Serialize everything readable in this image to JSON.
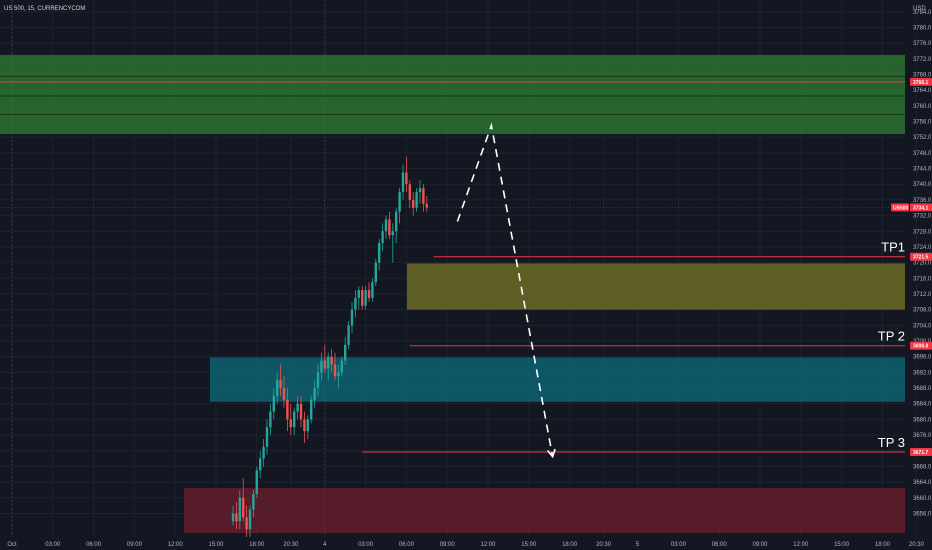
{
  "header": {
    "symbol": "US 500, 15, CURRENCYCOM"
  },
  "chart_data": {
    "type": "candlestick",
    "currency": "USD",
    "ylim": [
      3650,
      3787
    ],
    "y_ticks": [
      3656.0,
      3660.0,
      3664.0,
      3668.0,
      3672.0,
      3676.0,
      3680.0,
      3684.0,
      3688.0,
      3692.0,
      3696.0,
      3700.0,
      3704.0,
      3708.0,
      3712.0,
      3716.0,
      3720.0,
      3724.0,
      3728.0,
      3732.0,
      3736.0,
      3740.0,
      3744.0,
      3748.0,
      3752.0,
      3756.0,
      3760.0,
      3764.0,
      3768.0,
      3772.0,
      3776.0,
      3780.0,
      3784.0
    ],
    "y_tick_labels": [
      "3656.0",
      "3660.0",
      "3664.0",
      "3668.0",
      "3672.0",
      "3676.0",
      "3680.0",
      "3684.0",
      "3688.0",
      "3692.0",
      "3696.0",
      "3700.0",
      "3704.0",
      "3708.0",
      "3712.0",
      "3716.0",
      "3720.0",
      "3724.0",
      "3728.0",
      "3732.0",
      "3736.0",
      "3740.0",
      "3744.0",
      "3748.0",
      "3752.0",
      "3756.0",
      "3760.0",
      "3764.0",
      "3768.0",
      "3772.0",
      "3776.0",
      "3780.0",
      "3784.0"
    ],
    "x_ticks": [
      "Oct",
      "03:00",
      "06:00",
      "09:00",
      "12:00",
      "15:00",
      "18:00",
      "20:30",
      "4",
      "03:00",
      "06:00",
      "09:00",
      "12:00",
      "15:00",
      "18:00",
      "20:30",
      "5",
      "03:00",
      "06:00",
      "09:00",
      "12:00",
      "15:00",
      "18:00",
      "20:30"
    ],
    "x_tick_bars": [
      0,
      12,
      24,
      36,
      48,
      60,
      72,
      82,
      92,
      104,
      116,
      128,
      140,
      152,
      164,
      174,
      184,
      196,
      208,
      220,
      232,
      244,
      256,
      266
    ],
    "candles": [
      [
        3654,
        3658,
        3653,
        3656
      ],
      [
        3656,
        3659,
        3652,
        3654
      ],
      [
        3654,
        3662,
        3652,
        3660
      ],
      [
        3660,
        3665,
        3654,
        3655
      ],
      [
        3655,
        3658,
        3650,
        3652
      ],
      [
        3652,
        3658,
        3650,
        3657
      ],
      [
        3657,
        3662,
        3655,
        3661
      ],
      [
        3661,
        3668,
        3660,
        3667
      ],
      [
        3667,
        3672,
        3665,
        3670
      ],
      [
        3670,
        3675,
        3668,
        3673
      ],
      [
        3673,
        3680,
        3671,
        3678
      ],
      [
        3678,
        3684,
        3676,
        3682
      ],
      [
        3682,
        3688,
        3680,
        3686
      ],
      [
        3686,
        3692,
        3684,
        3690
      ],
      [
        3690,
        3694,
        3686,
        3688
      ],
      [
        3688,
        3691,
        3683,
        3685
      ],
      [
        3685,
        3688,
        3677,
        3680
      ],
      [
        3680,
        3684,
        3676,
        3678
      ],
      [
        3678,
        3683,
        3676,
        3682
      ],
      [
        3682,
        3686,
        3680,
        3684
      ],
      [
        3684,
        3686,
        3678,
        3680
      ],
      [
        3680,
        3682,
        3674,
        3677
      ],
      [
        3677,
        3681,
        3675,
        3680
      ],
      [
        3680,
        3686,
        3679,
        3685
      ],
      [
        3685,
        3690,
        3683,
        3688
      ],
      [
        3688,
        3694,
        3686,
        3692
      ],
      [
        3692,
        3697,
        3690,
        3695
      ],
      [
        3695,
        3699,
        3692,
        3693
      ],
      [
        3693,
        3697,
        3690,
        3696
      ],
      [
        3696,
        3698,
        3692,
        3694
      ],
      [
        3694,
        3697,
        3690,
        3691
      ],
      [
        3691,
        3694,
        3688,
        3692
      ],
      [
        3692,
        3696,
        3691,
        3695
      ],
      [
        3695,
        3701,
        3694,
        3699
      ],
      [
        3699,
        3705,
        3698,
        3704
      ],
      [
        3704,
        3710,
        3702,
        3708
      ],
      [
        3708,
        3713,
        3706,
        3711
      ],
      [
        3711,
        3714,
        3708,
        3713
      ],
      [
        3713,
        3714,
        3708,
        3709
      ],
      [
        3709,
        3714,
        3708,
        3713
      ],
      [
        3713,
        3715,
        3710,
        3711
      ],
      [
        3711,
        3716,
        3710,
        3715
      ],
      [
        3715,
        3721,
        3714,
        3720
      ],
      [
        3720,
        3726,
        3718,
        3725
      ],
      [
        3725,
        3730,
        3723,
        3728
      ],
      [
        3728,
        3732,
        3726,
        3731
      ],
      [
        3731,
        3733,
        3726,
        3727
      ],
      [
        3727,
        3730,
        3720,
        3728
      ],
      [
        3728,
        3734,
        3725,
        3733
      ],
      [
        3733,
        3739,
        3730,
        3738
      ],
      [
        3738,
        3745,
        3736,
        3743
      ],
      [
        3743,
        3747,
        3738,
        3740
      ],
      [
        3740,
        3741,
        3734,
        3736
      ],
      [
        3736,
        3738,
        3732,
        3734
      ],
      [
        3734,
        3739,
        3733,
        3738
      ],
      [
        3738,
        3741,
        3735,
        3739
      ],
      [
        3739,
        3740,
        3733,
        3735
      ],
      [
        3735,
        3737,
        3733,
        3734
      ]
    ],
    "zones": [
      {
        "y1": 3752.8,
        "y2": 3773.0,
        "color": "#2e7d32",
        "alpha": 0.75
      },
      {
        "y1": 3708.0,
        "y2": 3719.8,
        "color": "#6b6a24",
        "alpha": 0.85
      },
      {
        "y1": 3684.5,
        "y2": 3695.8,
        "color": "#0f6677",
        "alpha": 0.8
      },
      {
        "y1": 3651.0,
        "y2": 3662.5,
        "color": "#6e1f2c",
        "alpha": 0.75
      }
    ],
    "zone_inner_bands": [
      3767.5,
      3762.5,
      3757.8
    ],
    "horizontal_lines": [
      {
        "y": 3766.1,
        "color": "#f23645",
        "from_bar": -2
      },
      {
        "y": 3721.5,
        "color": "#f23645",
        "from_bar": 59,
        "label": "TP1"
      },
      {
        "y": 3698.8,
        "color": "#f23645",
        "from_bar": 52,
        "label": "TP 2"
      },
      {
        "y": 3671.7,
        "color": "#f23645",
        "from_bar": 38,
        "label": "TP 3"
      }
    ],
    "current_price_line": 3734.1,
    "projection_path": [
      [
        66,
        3730.5
      ],
      [
        76,
        3755.0
      ],
      [
        94,
        3670.5
      ]
    ],
    "projection_arrow_color": "#ffffff",
    "price_badges": [
      {
        "y": 3766.1,
        "text": "3766.1",
        "color": "#f23645"
      },
      {
        "y": 3734.1,
        "text": "3734.1",
        "color": "#f23645"
      },
      {
        "y": 3721.5,
        "text": "3721.5",
        "color": "#f23645"
      },
      {
        "y": 3698.8,
        "text": "3698.8",
        "color": "#f23645"
      },
      {
        "y": 3671.7,
        "text": "3671.7",
        "color": "#f23645"
      }
    ],
    "symbol_badge": {
      "text": "US500",
      "color": "#f23645"
    },
    "up_color": "#26a69a",
    "down_color": "#ef5350"
  }
}
